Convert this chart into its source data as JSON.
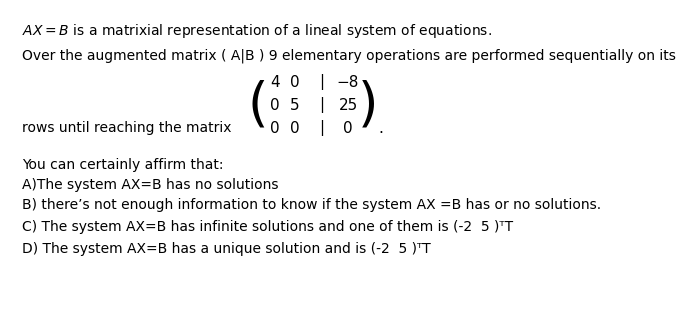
{
  "line1a": "AX = B",
  "line1b": " is a matrixial representation of a lineal system of equations.",
  "line2": "Over the augmented matrix ( A|B ) 9 elementary operations are performed sequentially on its",
  "matrix_data": [
    [
      "4",
      "0",
      "−8"
    ],
    [
      "0",
      "5",
      "25"
    ],
    [
      "0",
      "0",
      "0"
    ]
  ],
  "rows_label": "rows until reaching the matrix",
  "line3": "You can certainly affirm that:",
  "optionA": "A)The system AX=B has no solutions",
  "optionB": "B) there’s not enough information to know if the system AX =B has or no solutions.",
  "optionC": "C) The system AX=B has infinite solutions and one of them is (-2  5 )ᵀT",
  "optionD": "D) The system AX=B has a unique solution and is (-2  5 )ᵀT",
  "bg_color": "#ffffff",
  "text_color": "#000000",
  "font_size": 10.0,
  "matrix_font_size": 11.0,
  "paren_font_size": 38
}
